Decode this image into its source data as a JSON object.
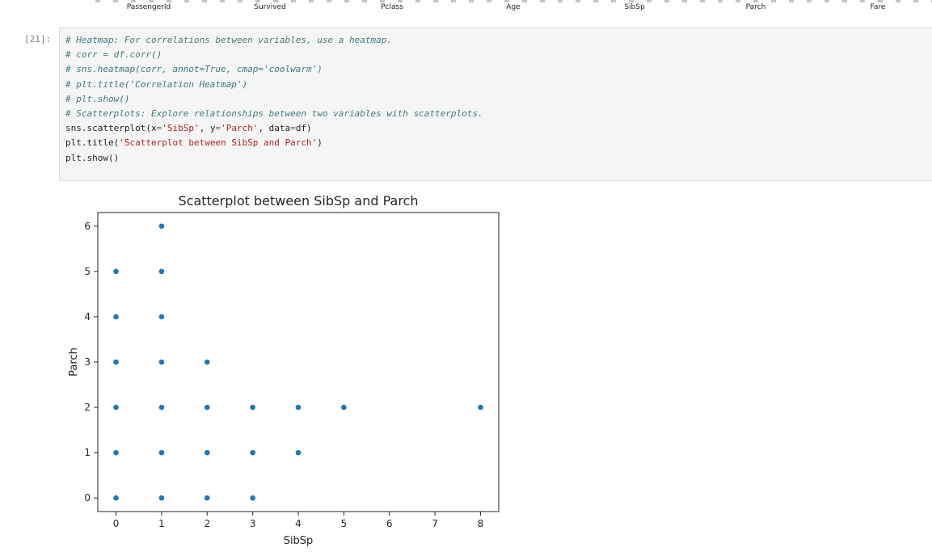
{
  "previous_output": {
    "axis_labels": [
      "PassengerId",
      "Survived",
      "Pclass",
      "Age",
      "SibSp",
      "Parch",
      "Fare"
    ]
  },
  "cell": {
    "prompt": "[21]:",
    "code": [
      {
        "text": "# Heatmap: For correlations between variables, use a heatmap.",
        "type": "comment"
      },
      {
        "text": "# corr = df.corr()",
        "type": "comment"
      },
      {
        "text": "# sns.heatmap(corr, annot=True, cmap='coolwarm')",
        "type": "comment"
      },
      {
        "text": "# plt.title('Correlation Heatmap')",
        "type": "comment"
      },
      {
        "text": "# plt.show()",
        "type": "comment"
      },
      {
        "text": "# Scatterplots: Explore relationships between two variables with scatterplots.",
        "type": "comment"
      },
      {
        "text": "sns.scatterplot(x='SibSp', y='Parch', data=df)",
        "type": "code"
      },
      {
        "text": "plt.title('Scatterplot between SibSp and Parch')",
        "type": "code"
      },
      {
        "text": "plt.show()",
        "type": "code"
      }
    ]
  },
  "colors": {
    "point": "#1f77b4",
    "axes": "#262626"
  },
  "chart_data": {
    "type": "scatter",
    "title": "Scatterplot between SibSp and Parch",
    "xlabel": "SibSp",
    "ylabel": "Parch",
    "xlim": [
      -0.4,
      8.4
    ],
    "ylim": [
      -0.3,
      6.3
    ],
    "xticks": [
      0,
      1,
      2,
      3,
      4,
      5,
      6,
      7,
      8
    ],
    "yticks": [
      0,
      1,
      2,
      3,
      4,
      5,
      6
    ],
    "grid": false,
    "points": [
      [
        0,
        0
      ],
      [
        0,
        1
      ],
      [
        0,
        2
      ],
      [
        0,
        3
      ],
      [
        0,
        4
      ],
      [
        0,
        5
      ],
      [
        1,
        0
      ],
      [
        1,
        1
      ],
      [
        1,
        2
      ],
      [
        1,
        3
      ],
      [
        1,
        4
      ],
      [
        1,
        5
      ],
      [
        1,
        6
      ],
      [
        2,
        0
      ],
      [
        2,
        1
      ],
      [
        2,
        2
      ],
      [
        2,
        3
      ],
      [
        3,
        0
      ],
      [
        3,
        1
      ],
      [
        3,
        2
      ],
      [
        4,
        1
      ],
      [
        4,
        2
      ],
      [
        5,
        2
      ],
      [
        8,
        2
      ]
    ]
  }
}
